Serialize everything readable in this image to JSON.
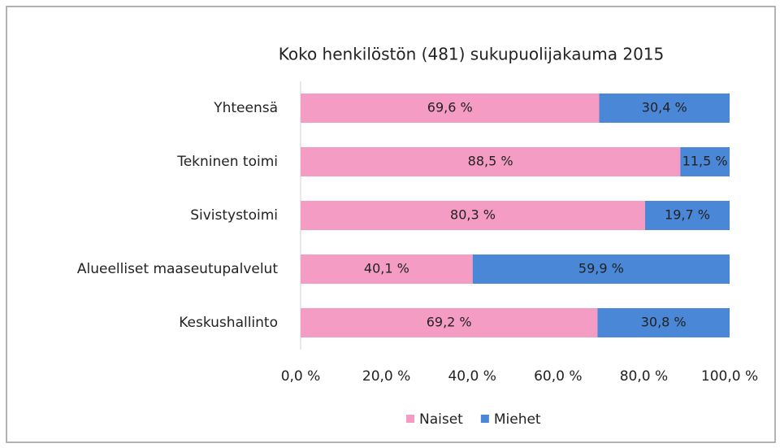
{
  "chart_data": {
    "type": "stacked-bar-horizontal",
    "title": "Koko henkilöstön (481) sukupuolijakauma 2015",
    "categories": [
      "Yhteensä",
      "Tekninen toimi",
      "Sivistystoimi",
      "Alueelliset maaseutupalvelut",
      "Keskushallinto"
    ],
    "series": [
      {
        "name": "Naiset",
        "color": "#f59cc5",
        "values": [
          69.6,
          88.5,
          80.3,
          40.1,
          69.2
        ],
        "value_labels": [
          "69,6 %",
          "88,5 %",
          "80,3 %",
          "40,1 %",
          "69,2 %"
        ]
      },
      {
        "name": "Miehet",
        "color": "#4a87d6",
        "values": [
          30.4,
          11.5,
          19.7,
          59.9,
          30.8
        ],
        "value_labels": [
          "30,4 %",
          "11,5 %",
          "19,7 %",
          "59,9 %",
          "30,8 %"
        ]
      }
    ],
    "xlim": [
      0,
      100
    ],
    "xticks": [
      {
        "value": 0,
        "label": "0,0 %"
      },
      {
        "value": 20,
        "label": "20,0 %"
      },
      {
        "value": 40,
        "label": "40,0 %"
      },
      {
        "value": 60,
        "label": "60,0 %"
      },
      {
        "value": 80,
        "label": "80,0 %"
      },
      {
        "value": 100,
        "label": "100,0 %"
      }
    ],
    "legend": "bottom"
  }
}
